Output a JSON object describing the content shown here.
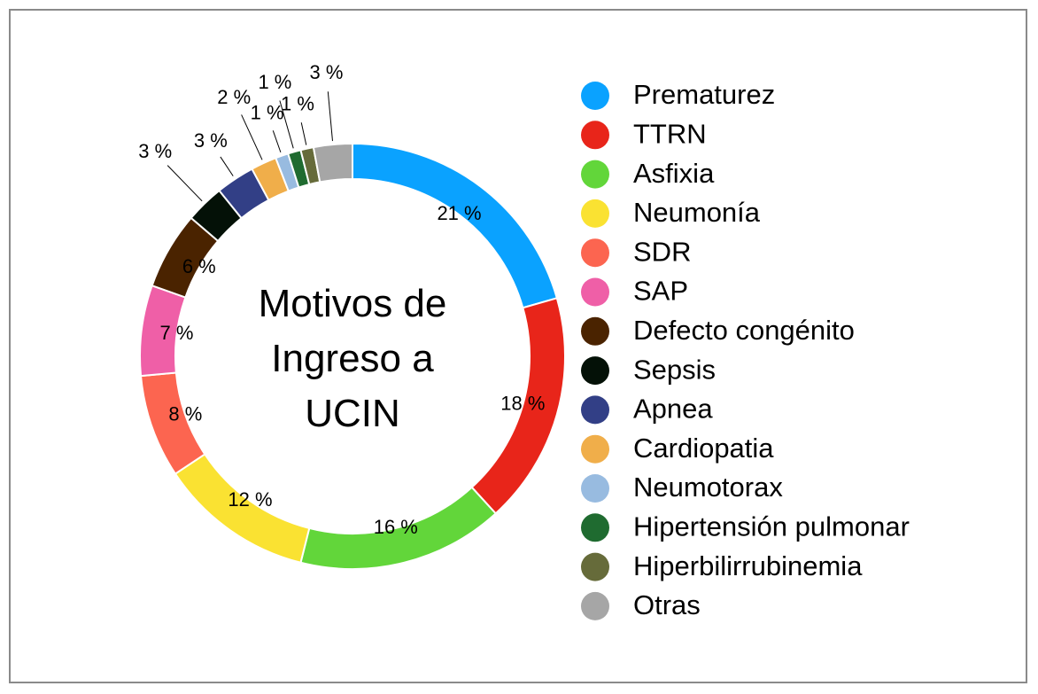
{
  "chart_data": {
    "type": "donut",
    "title": "Motivos de Ingreso a UCIN",
    "categories": [
      "Prematurez",
      "TTRN",
      "Asfixia",
      "Neumonía",
      "SDR",
      "SAP",
      "Defecto congénito",
      "Sepsis",
      "Apnea",
      "Cardiopatia",
      "Neumotorax",
      "Hipertensión pulmonar",
      "Hiperbilirrubinemia",
      "Otras"
    ],
    "values": [
      21,
      18,
      16,
      12,
      8,
      7,
      6,
      3,
      3,
      2,
      1,
      1,
      1,
      3
    ],
    "value_labels": [
      "21 %",
      "18 %",
      "16 %",
      "12 %",
      "8 %",
      "7 %",
      "6 %",
      "3 %",
      "3 %",
      "2 %",
      "1 %",
      "1 %",
      "1 %",
      "3 %"
    ],
    "colors": [
      "#0aa2ff",
      "#e8251a",
      "#62d63a",
      "#fae232",
      "#fc6550",
      "#ef5fa7",
      "#4a2300",
      "#041107",
      "#323f86",
      "#f0ae4a",
      "#98bbe0",
      "#1f6b30",
      "#666b3a",
      "#a6a6a6"
    ],
    "legend": "right"
  }
}
